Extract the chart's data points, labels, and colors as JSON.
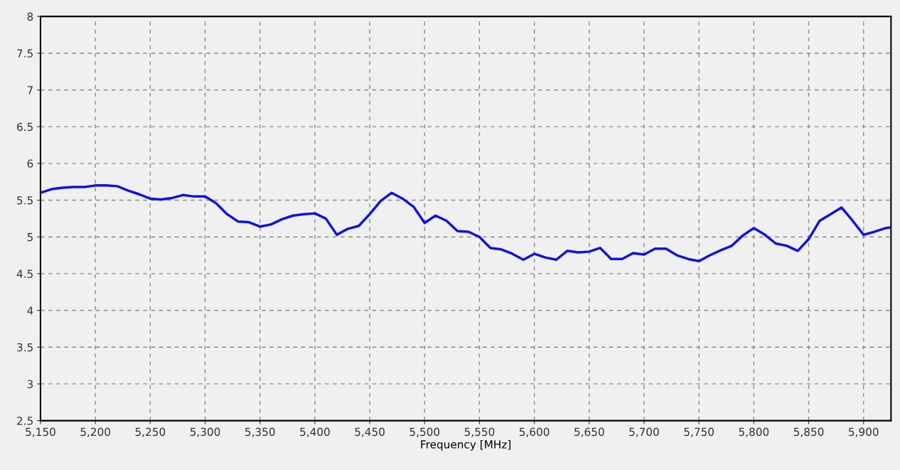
{
  "chart_data": {
    "type": "line",
    "xlabel": "Frequency [MHz]",
    "x": [
      5150,
      5160,
      5170,
      5180,
      5190,
      5200,
      5210,
      5220,
      5230,
      5240,
      5250,
      5260,
      5270,
      5280,
      5290,
      5300,
      5310,
      5320,
      5330,
      5340,
      5350,
      5360,
      5370,
      5380,
      5390,
      5400,
      5410,
      5420,
      5430,
      5440,
      5450,
      5460,
      5470,
      5480,
      5490,
      5500,
      5510,
      5520,
      5530,
      5540,
      5550,
      5560,
      5570,
      5580,
      5590,
      5600,
      5610,
      5620,
      5630,
      5640,
      5650,
      5660,
      5670,
      5680,
      5690,
      5700,
      5710,
      5720,
      5730,
      5740,
      5750,
      5760,
      5770,
      5780,
      5790,
      5800,
      5810,
      5820,
      5830,
      5840,
      5850,
      5860,
      5870,
      5880,
      5890,
      5900,
      5910,
      5920,
      5925
    ],
    "series": [
      {
        "color": "#1010e8",
        "values": [
          5.6,
          5.65,
          5.67,
          5.68,
          5.68,
          5.7,
          5.7,
          5.69,
          5.63,
          5.58,
          5.52,
          5.51,
          5.53,
          5.57,
          5.55,
          5.55,
          5.46,
          5.31,
          5.21,
          5.2,
          5.14,
          5.17,
          5.24,
          5.29,
          5.31,
          5.32,
          5.25,
          5.03,
          5.11,
          5.15,
          5.31,
          5.49,
          5.6,
          5.52,
          5.41,
          5.19,
          5.29,
          5.22,
          5.08,
          5.07,
          5.0,
          4.85,
          4.83,
          4.77,
          4.69,
          4.77,
          4.72,
          4.69,
          4.81,
          4.79,
          4.8,
          4.85,
          4.7,
          4.7,
          4.78,
          4.76,
          4.84,
          4.84,
          4.75,
          4.7,
          4.67,
          4.75,
          4.82,
          4.88,
          5.02,
          5.12,
          5.03,
          4.91,
          4.88,
          4.81,
          4.97,
          5.22,
          5.31,
          5.4,
          5.22,
          5.03,
          5.07,
          5.12,
          5.13
        ]
      }
    ],
    "xlim": [
      5150,
      5925
    ],
    "xticks": [
      {
        "value": 5150,
        "label": "5,150"
      },
      {
        "value": 5200,
        "label": "5,200"
      },
      {
        "value": 5250,
        "label": "5,250"
      },
      {
        "value": 5300,
        "label": "5,300"
      },
      {
        "value": 5350,
        "label": "5,350"
      },
      {
        "value": 5400,
        "label": "5,400"
      },
      {
        "value": 5450,
        "label": "5,450"
      },
      {
        "value": 5500,
        "label": "5,500"
      },
      {
        "value": 5550,
        "label": "5,550"
      },
      {
        "value": 5600,
        "label": "5,600"
      },
      {
        "value": 5650,
        "label": "5,650"
      },
      {
        "value": 5700,
        "label": "5,700"
      },
      {
        "value": 5750,
        "label": "5,750"
      },
      {
        "value": 5800,
        "label": "5,800"
      },
      {
        "value": 5850,
        "label": "5,850"
      },
      {
        "value": 5900,
        "label": "5,900"
      }
    ],
    "ylim": [
      2.5,
      8
    ],
    "yticks": [
      2.5,
      3,
      3.5,
      4,
      4.5,
      5,
      5.5,
      6,
      6.5,
      7,
      7.5,
      8
    ],
    "grid": true,
    "marker": "none",
    "line_style": "solid"
  }
}
